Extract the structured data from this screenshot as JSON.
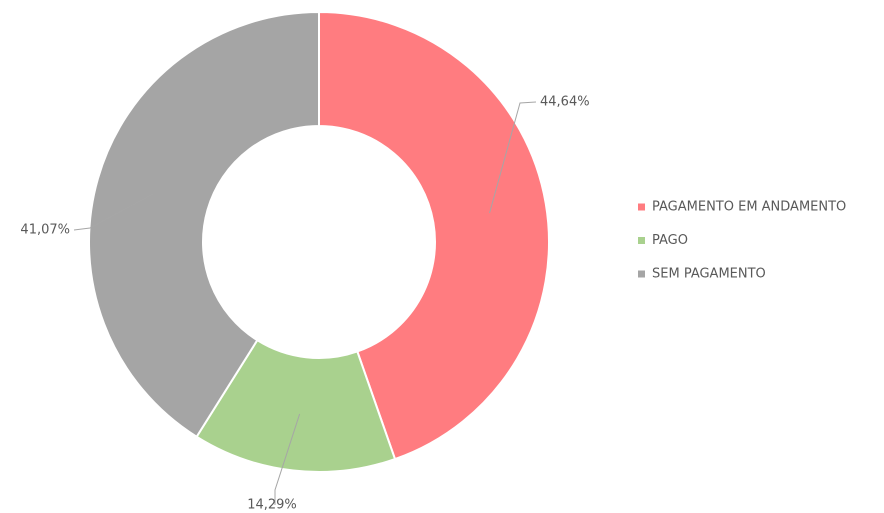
{
  "chart_data": {
    "type": "donut",
    "categories": [
      "PAGAMENTO EM ANDAMENTO",
      "PAGO",
      "SEM PAGAMENTO"
    ],
    "values": [
      44.64,
      14.29,
      41.07
    ],
    "value_labels": [
      "44,64%",
      "14,29%",
      "41,07%"
    ],
    "colors": [
      "#ff7c80",
      "#a9d18e",
      "#a5a5a5"
    ],
    "legend": "right"
  }
}
